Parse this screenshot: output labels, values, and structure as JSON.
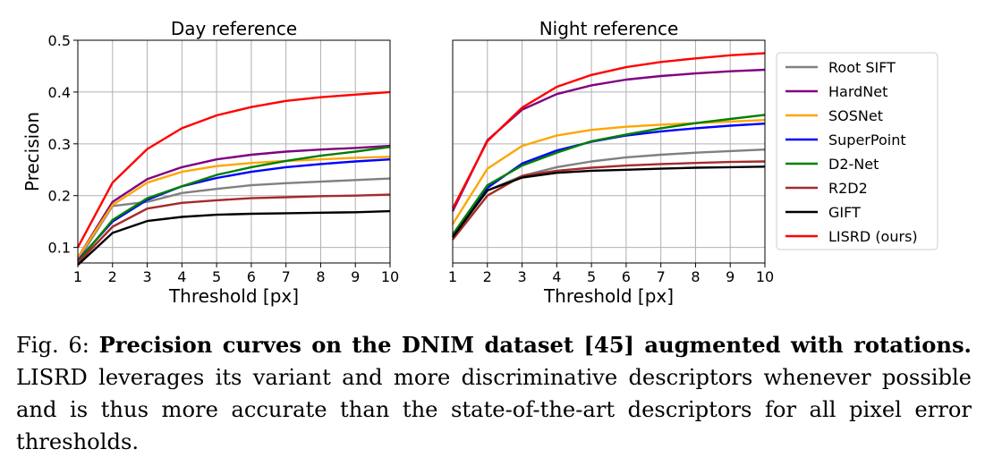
{
  "chart_data": [
    {
      "type": "line",
      "title": "Day reference",
      "xlabel": "Threshold [px]",
      "ylabel": "Precision",
      "xlim": [
        1,
        10
      ],
      "ylim": [
        0.07,
        0.5
      ],
      "xticks": [
        1,
        2,
        3,
        4,
        5,
        6,
        7,
        8,
        9,
        10
      ],
      "yticks": [
        0.1,
        0.2,
        0.3,
        0.4,
        0.5
      ],
      "grid": true,
      "x": [
        1,
        2,
        3,
        4,
        5,
        6,
        7,
        8,
        9,
        10
      ],
      "series": [
        {
          "name": "Root SIFT",
          "color": "#808080",
          "values": [
            0.075,
            0.18,
            0.188,
            0.205,
            0.213,
            0.22,
            0.224,
            0.227,
            0.23,
            0.233
          ]
        },
        {
          "name": "HardNet",
          "color": "#800080",
          "values": [
            0.08,
            0.188,
            0.232,
            0.255,
            0.27,
            0.279,
            0.285,
            0.289,
            0.292,
            0.296
          ]
        },
        {
          "name": "SOSNet",
          "color": "#ffa500",
          "values": [
            0.08,
            0.182,
            0.225,
            0.246,
            0.257,
            0.263,
            0.267,
            0.27,
            0.273,
            0.275
          ]
        },
        {
          "name": "SuperPoint",
          "color": "#0000ff",
          "values": [
            0.075,
            0.15,
            0.192,
            0.218,
            0.234,
            0.246,
            0.255,
            0.261,
            0.266,
            0.27
          ]
        },
        {
          "name": "D2-Net",
          "color": "#008000",
          "values": [
            0.072,
            0.153,
            0.195,
            0.218,
            0.24,
            0.255,
            0.267,
            0.277,
            0.285,
            0.294
          ]
        },
        {
          "name": "R2D2",
          "color": "#a52a2a",
          "values": [
            0.07,
            0.14,
            0.175,
            0.186,
            0.191,
            0.195,
            0.197,
            0.199,
            0.2,
            0.202
          ]
        },
        {
          "name": "GIFT",
          "color": "#000000",
          "values": [
            0.066,
            0.128,
            0.151,
            0.159,
            0.163,
            0.165,
            0.166,
            0.167,
            0.168,
            0.17
          ]
        },
        {
          "name": "LISRD (ours)",
          "color": "#ff0000",
          "values": [
            0.1,
            0.225,
            0.29,
            0.33,
            0.355,
            0.371,
            0.383,
            0.39,
            0.395,
            0.4
          ]
        }
      ]
    },
    {
      "type": "line",
      "title": "Night reference",
      "xlabel": "Threshold [px]",
      "ylabel": "",
      "xlim": [
        1,
        10
      ],
      "ylim": [
        0.07,
        0.5
      ],
      "xticks": [
        1,
        2,
        3,
        4,
        5,
        6,
        7,
        8,
        9,
        10
      ],
      "yticks": [],
      "grid": true,
      "x": [
        1,
        2,
        3,
        4,
        5,
        6,
        7,
        8,
        9,
        10
      ],
      "series": [
        {
          "name": "Root SIFT",
          "color": "#808080",
          "values": [
            0.12,
            0.21,
            0.238,
            0.255,
            0.266,
            0.274,
            0.279,
            0.283,
            0.286,
            0.289
          ]
        },
        {
          "name": "HardNet",
          "color": "#800080",
          "values": [
            0.17,
            0.307,
            0.366,
            0.396,
            0.413,
            0.424,
            0.431,
            0.436,
            0.44,
            0.443
          ]
        },
        {
          "name": "SOSNet",
          "color": "#ffa500",
          "values": [
            0.145,
            0.252,
            0.296,
            0.316,
            0.327,
            0.333,
            0.337,
            0.34,
            0.343,
            0.346
          ]
        },
        {
          "name": "SuperPoint",
          "color": "#0000ff",
          "values": [
            0.12,
            0.215,
            0.262,
            0.287,
            0.304,
            0.316,
            0.324,
            0.33,
            0.335,
            0.339
          ]
        },
        {
          "name": "D2-Net",
          "color": "#008000",
          "values": [
            0.125,
            0.22,
            0.258,
            0.283,
            0.305,
            0.318,
            0.33,
            0.34,
            0.348,
            0.356
          ]
        },
        {
          "name": "R2D2",
          "color": "#a52a2a",
          "values": [
            0.115,
            0.2,
            0.238,
            0.248,
            0.254,
            0.258,
            0.261,
            0.263,
            0.265,
            0.266
          ]
        },
        {
          "name": "GIFT",
          "color": "#000000",
          "values": [
            0.12,
            0.21,
            0.235,
            0.244,
            0.248,
            0.25,
            0.252,
            0.254,
            0.255,
            0.256
          ]
        },
        {
          "name": "LISRD (ours)",
          "color": "#ff0000",
          "values": [
            0.175,
            0.305,
            0.37,
            0.41,
            0.433,
            0.448,
            0.458,
            0.465,
            0.471,
            0.475
          ]
        }
      ]
    }
  ],
  "legend": {
    "placement": "right",
    "entries": [
      {
        "name": "Root SIFT",
        "color": "#808080"
      },
      {
        "name": "HardNet",
        "color": "#800080"
      },
      {
        "name": "SOSNet",
        "color": "#ffa500"
      },
      {
        "name": "SuperPoint",
        "color": "#0000ff"
      },
      {
        "name": "D2-Net",
        "color": "#008000"
      },
      {
        "name": "R2D2",
        "color": "#a52a2a"
      },
      {
        "name": "GIFT",
        "color": "#000000"
      },
      {
        "name": "LISRD (ours)",
        "color": "#ff0000"
      }
    ]
  },
  "caption": {
    "label": "Fig. 6:",
    "bold": "Precision curves on the DNIM dataset [45] augmented with rotations.",
    "text": "LISRD leverages its variant and more discriminative descriptors whenever possible and is thus more accurate than the state-of-the-art descriptors for all pixel error thresholds."
  }
}
